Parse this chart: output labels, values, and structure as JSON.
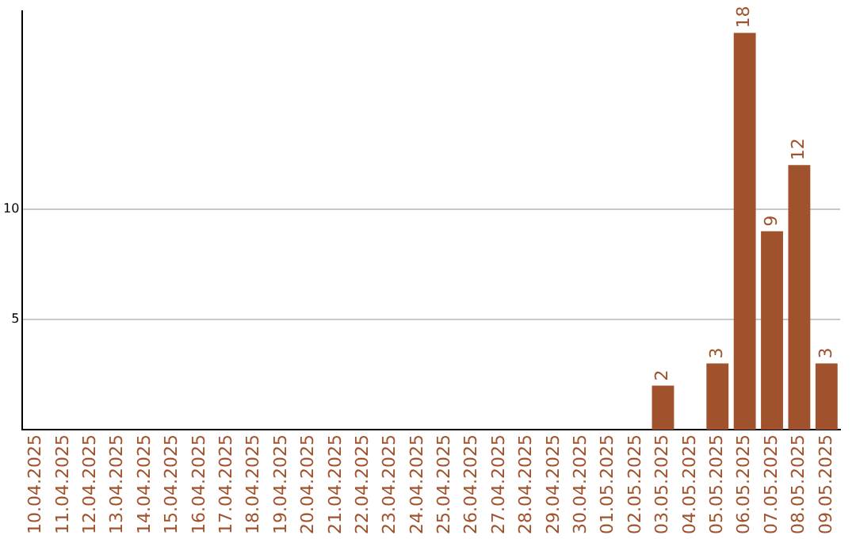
{
  "chart_data": {
    "type": "bar",
    "categories": [
      "10.04.2025",
      "11.04.2025",
      "12.04.2025",
      "13.04.2025",
      "14.04.2025",
      "15.04.2025",
      "16.04.2025",
      "17.04.2025",
      "18.04.2025",
      "19.04.2025",
      "20.04.2025",
      "21.04.2025",
      "22.04.2025",
      "23.04.2025",
      "24.04.2025",
      "25.04.2025",
      "26.04.2025",
      "27.04.2025",
      "28.04.2025",
      "29.04.2025",
      "30.04.2025",
      "01.05.2025",
      "02.05.2025",
      "03.05.2025",
      "04.05.2025",
      "05.05.2025",
      "06.05.2025",
      "07.05.2025",
      "08.05.2025",
      "09.05.2025"
    ],
    "values": [
      0,
      0,
      0,
      0,
      0,
      0,
      0,
      0,
      0,
      0,
      0,
      0,
      0,
      0,
      0,
      0,
      0,
      0,
      0,
      0,
      0,
      0,
      0,
      2,
      0,
      3,
      18,
      9,
      12,
      3
    ],
    "value_labels": [
      null,
      null,
      null,
      null,
      null,
      null,
      null,
      null,
      null,
      null,
      null,
      null,
      null,
      null,
      null,
      null,
      null,
      null,
      null,
      null,
      null,
      null,
      null,
      "2",
      null,
      "3",
      "18",
      "9",
      "12",
      "3"
    ],
    "color": "#a0522d",
    "ylim": [
      0,
      19
    ],
    "yticks": [
      5,
      10
    ],
    "grid": "y"
  }
}
